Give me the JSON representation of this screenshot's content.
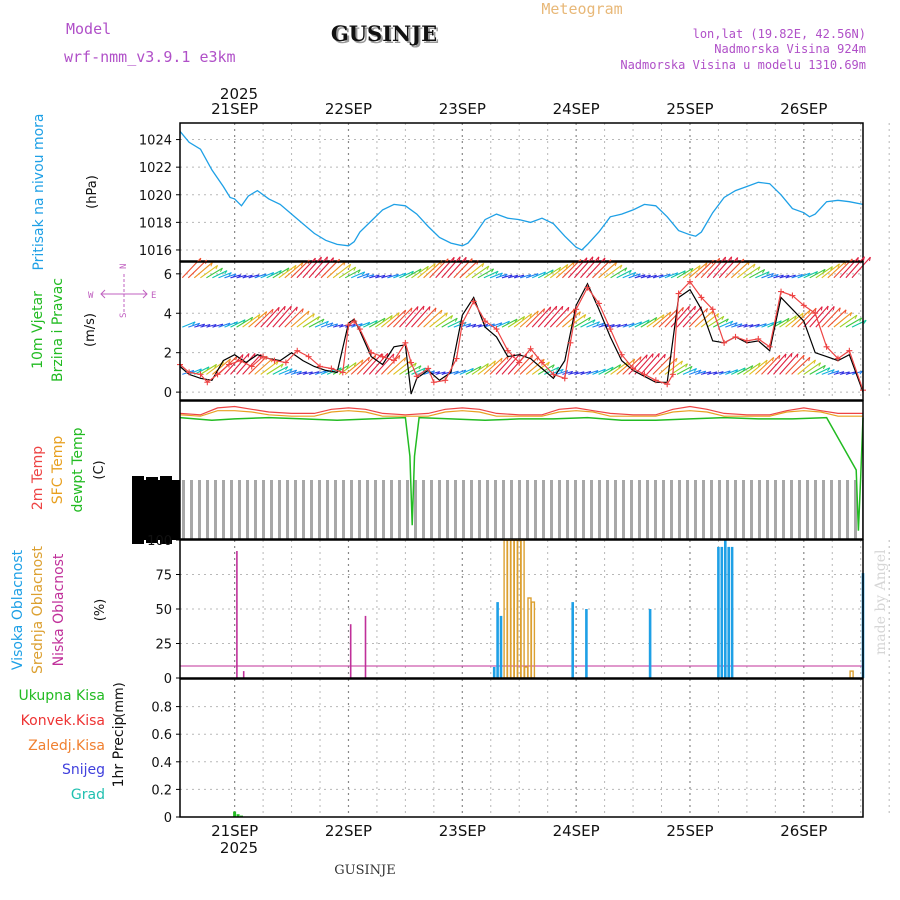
{
  "header": {
    "model_label": "Model",
    "model_name": "wrf-nmm_v3.9.1 e3km",
    "title": "GUSINJE",
    "meteogram": "Meteogram",
    "lonlat": "lon,lat (19.82E, 42.56N)",
    "elevation": "Nadmorska Visina 924m",
    "model_elevation": "Nadmorska Visina u modelu 1310.69m",
    "year_top": "2025",
    "year_bottom": "2025",
    "footer_station": "GUSINJE",
    "made_by": "made by Angel"
  },
  "colors": {
    "pressure": "#1ea0e6",
    "wind_label": "#22bb22",
    "temp_2m": "#ee4444",
    "temp_sfc": "#e8a020",
    "dewpoint": "#22bb22",
    "cloud_high": "#1ea0e6",
    "cloud_mid": "#dca030",
    "cloud_low": "#c0309a",
    "rain_total": "#22bb22",
    "rain_conv": "#ee3333",
    "rain_frz": "#f08030",
    "snow": "#4040dd",
    "graupel": "#20c0b0",
    "compass": "#c060c0",
    "wind_speed": "#ee4444",
    "wind_gust": "#000000"
  },
  "chart_data": [
    {
      "type": "line",
      "name": "pressure",
      "ylabel": "Pritisak na nivou mora",
      "unit": "(hPa)",
      "ylim": [
        1015.2,
        1025.2
      ],
      "yticks": [
        "1016",
        "1018",
        "1020",
        "1022",
        "1024"
      ],
      "xticks": [
        "21SEP",
        "22SEP",
        "23SEP",
        "24SEP",
        "25SEP",
        "26SEP"
      ],
      "x_start_day": 20.52,
      "x_end_day": 26.52,
      "series": [
        {
          "name": "MSLP",
          "color": "#1ea0e6",
          "x": [
            20.52,
            20.6,
            20.7,
            20.8,
            20.9,
            20.96,
            21.0,
            21.06,
            21.12,
            21.2,
            21.3,
            21.4,
            21.5,
            21.6,
            21.7,
            21.8,
            21.9,
            22.0,
            22.05,
            22.1,
            22.2,
            22.3,
            22.4,
            22.5,
            22.6,
            22.7,
            22.8,
            22.9,
            23.0,
            23.05,
            23.1,
            23.2,
            23.3,
            23.4,
            23.5,
            23.6,
            23.7,
            23.8,
            23.9,
            24.0,
            24.05,
            24.1,
            24.2,
            24.3,
            24.4,
            24.5,
            24.6,
            24.7,
            24.8,
            24.9,
            25.0,
            25.05,
            25.1,
            25.2,
            25.3,
            25.4,
            25.5,
            25.6,
            25.7,
            25.8,
            25.9,
            26.0,
            26.05,
            26.1,
            26.2,
            26.3,
            26.4,
            26.52
          ],
          "values": [
            1024.6,
            1023.8,
            1023.3,
            1021.8,
            1020.6,
            1019.8,
            1019.7,
            1019.2,
            1019.9,
            1020.3,
            1019.7,
            1019.3,
            1018.6,
            1017.9,
            1017.2,
            1016.7,
            1016.4,
            1016.3,
            1016.6,
            1017.3,
            1018.1,
            1018.9,
            1019.3,
            1019.2,
            1018.6,
            1017.7,
            1016.9,
            1016.5,
            1016.3,
            1016.5,
            1017.0,
            1018.2,
            1018.6,
            1018.3,
            1018.2,
            1018.0,
            1018.3,
            1017.9,
            1017.0,
            1016.2,
            1016.0,
            1016.4,
            1017.3,
            1018.4,
            1018.6,
            1018.9,
            1019.3,
            1019.2,
            1018.4,
            1017.4,
            1017.1,
            1017.0,
            1017.3,
            1018.7,
            1019.8,
            1020.3,
            1020.6,
            1020.9,
            1020.8,
            1020.0,
            1019.0,
            1018.7,
            1018.4,
            1018.6,
            1019.5,
            1019.6,
            1019.5,
            1019.3
          ]
        }
      ]
    },
    {
      "type": "line",
      "name": "wind",
      "ylabel_1": "10m Vjetar",
      "ylabel_2": "Brzina i Pravac",
      "unit": "(m/s)",
      "ylim": [
        -0.4,
        6.6
      ],
      "yticks": [
        "0",
        "2",
        "4",
        "6"
      ],
      "compass": {
        "n": "N",
        "e": "E",
        "s": "S",
        "w": "W"
      },
      "series": [
        {
          "name": "speed",
          "color": "#ee4444",
          "x": [
            20.52,
            20.6,
            20.7,
            20.76,
            20.85,
            20.95,
            21.05,
            21.15,
            21.25,
            21.35,
            21.45,
            21.55,
            21.65,
            21.75,
            21.85,
            21.95,
            22.0,
            22.05,
            22.1,
            22.2,
            22.3,
            22.4,
            22.5,
            22.55,
            22.6,
            22.7,
            22.75,
            22.85,
            22.95,
            23.0,
            23.1,
            23.2,
            23.3,
            23.4,
            23.5,
            23.6,
            23.7,
            23.8,
            23.9,
            23.95,
            24.0,
            24.1,
            24.2,
            24.3,
            24.4,
            24.5,
            24.6,
            24.7,
            24.8,
            24.85,
            24.9,
            25.0,
            25.1,
            25.2,
            25.3,
            25.4,
            25.5,
            25.6,
            25.7,
            25.8,
            25.9,
            26.0,
            26.1,
            26.2,
            26.3,
            26.4,
            26.52
          ],
          "values": [
            1.4,
            1.0,
            0.9,
            0.5,
            0.9,
            1.4,
            1.6,
            1.3,
            1.8,
            1.6,
            1.5,
            2.1,
            1.8,
            1.3,
            1.2,
            1.0,
            3.4,
            3.6,
            3.2,
            2.0,
            1.8,
            1.6,
            2.5,
            1.5,
            0.8,
            1.2,
            0.5,
            0.6,
            1.7,
            3.5,
            4.6,
            3.6,
            3.2,
            2.1,
            1.5,
            2.2,
            1.5,
            0.9,
            0.7,
            2.5,
            4.2,
            5.3,
            4.5,
            3.2,
            1.9,
            1.2,
            0.9,
            0.6,
            0.4,
            0.9,
            5.0,
            5.6,
            4.8,
            4.2,
            2.5,
            2.8,
            2.6,
            2.7,
            2.3,
            5.1,
            4.9,
            4.4,
            4.0,
            2.3,
            1.7,
            2.1,
            0.1
          ]
        },
        {
          "name": "gust",
          "color": "#000000",
          "x": [
            20.52,
            20.6,
            20.7,
            20.8,
            20.9,
            21.0,
            21.1,
            21.2,
            21.3,
            21.4,
            21.5,
            21.6,
            21.7,
            21.8,
            21.9,
            22.0,
            22.05,
            22.1,
            22.2,
            22.3,
            22.4,
            22.5,
            22.55,
            22.6,
            22.7,
            22.8,
            22.9,
            23.0,
            23.1,
            23.2,
            23.3,
            23.4,
            23.5,
            23.6,
            23.7,
            23.8,
            23.9,
            24.0,
            24.1,
            24.2,
            24.3,
            24.4,
            24.5,
            24.6,
            24.7,
            24.8,
            24.9,
            25.0,
            25.1,
            25.2,
            25.3,
            25.4,
            25.5,
            25.6,
            25.7,
            25.8,
            25.9,
            26.0,
            26.1,
            26.2,
            26.3,
            26.4,
            26.52
          ],
          "values": [
            1.3,
            0.9,
            0.7,
            0.6,
            1.6,
            1.9,
            1.5,
            1.9,
            1.7,
            1.6,
            2.0,
            1.6,
            1.3,
            1.1,
            1.0,
            3.5,
            3.7,
            3.1,
            1.8,
            1.4,
            2.3,
            2.4,
            -0.1,
            0.7,
            1.1,
            0.6,
            1.0,
            3.9,
            4.8,
            3.3,
            2.8,
            1.8,
            1.9,
            1.7,
            1.2,
            0.7,
            1.6,
            4.4,
            5.5,
            4.2,
            2.8,
            1.6,
            1.1,
            0.8,
            0.5,
            0.5,
            4.8,
            5.2,
            4.2,
            2.6,
            2.5,
            2.8,
            2.5,
            2.6,
            2.1,
            4.8,
            4.2,
            3.6,
            2.0,
            1.8,
            1.6,
            1.9,
            0.0
          ]
        }
      ],
      "barb_rows": [
        {
          "level": 5.8
        },
        {
          "level": 3.3
        },
        {
          "level": 0.9
        }
      ]
    },
    {
      "type": "line",
      "name": "temperature",
      "ylabel_1": "2m Temp",
      "ylabel_2": "SFC Temp",
      "ylabel_3": "dewpt Temp",
      "unit": "(C)",
      "ylim": [
        0,
        10
      ],
      "series": [
        {
          "name": "2m",
          "color": "#ee4444",
          "x": [
            20.52,
            20.7,
            20.85,
            21.0,
            21.15,
            21.3,
            21.5,
            21.7,
            21.85,
            22.0,
            22.15,
            22.3,
            22.5,
            22.7,
            22.85,
            23.0,
            23.15,
            23.3,
            23.5,
            23.7,
            23.85,
            24.0,
            24.15,
            24.3,
            24.5,
            24.7,
            24.85,
            25.0,
            25.15,
            25.3,
            25.5,
            25.7,
            25.85,
            26.0,
            26.15,
            26.3,
            26.52
          ],
          "values": [
            9.1,
            9.0,
            9.5,
            9.6,
            9.4,
            9.2,
            9.1,
            9.1,
            9.4,
            9.5,
            9.4,
            9.1,
            9.0,
            9.1,
            9.4,
            9.5,
            9.4,
            9.1,
            9.0,
            9.0,
            9.4,
            9.5,
            9.3,
            9.1,
            9.0,
            9.0,
            9.4,
            9.6,
            9.4,
            9.1,
            9.0,
            9.0,
            9.3,
            9.5,
            9.3,
            9.1,
            9.1
          ]
        },
        {
          "name": "sfc",
          "color": "#e8a020",
          "x": [
            20.52,
            20.7,
            20.85,
            21.0,
            21.15,
            21.3,
            21.5,
            21.7,
            21.85,
            22.0,
            22.15,
            22.3,
            22.5,
            22.7,
            22.85,
            23.0,
            23.15,
            23.3,
            23.5,
            23.7,
            23.85,
            24.0,
            24.15,
            24.3,
            24.5,
            24.7,
            24.85,
            25.0,
            25.15,
            25.3,
            25.5,
            25.7,
            25.85,
            26.0,
            26.15,
            26.3,
            26.52
          ],
          "values": [
            9.0,
            8.9,
            9.3,
            9.3,
            9.2,
            9.0,
            8.9,
            8.9,
            9.2,
            9.3,
            9.2,
            8.9,
            8.9,
            8.9,
            9.2,
            9.3,
            9.2,
            8.9,
            8.9,
            8.9,
            9.2,
            9.3,
            9.2,
            8.9,
            8.9,
            8.9,
            9.2,
            9.3,
            9.2,
            8.9,
            8.9,
            8.9,
            9.2,
            9.3,
            9.2,
            8.9,
            8.9
          ]
        },
        {
          "name": "dewpt",
          "color": "#22bb22",
          "x": [
            20.52,
            20.8,
            21.0,
            21.3,
            21.6,
            21.9,
            22.2,
            22.5,
            22.54,
            22.56,
            22.58,
            22.62,
            22.9,
            23.2,
            23.5,
            23.8,
            24.1,
            24.4,
            24.7,
            25.0,
            25.3,
            25.6,
            25.9,
            26.2,
            26.46,
            26.48,
            26.5,
            26.52
          ],
          "values": [
            8.8,
            8.6,
            8.7,
            8.8,
            8.7,
            8.6,
            8.7,
            8.8,
            6.0,
            1.0,
            6.0,
            8.8,
            8.7,
            8.6,
            8.7,
            8.7,
            8.8,
            8.6,
            8.6,
            8.7,
            8.8,
            8.7,
            8.7,
            8.8,
            5.0,
            0.6,
            4.5,
            8.8
          ]
        }
      ]
    },
    {
      "type": "bar",
      "name": "clouds",
      "ylabel_1": "Visoka Oblacnost",
      "ylabel_2": "Srednja Oblacnost",
      "ylabel_3": "Niska Oblacnost",
      "unit": "(%)",
      "ylim": [
        0,
        100
      ],
      "yticks": [
        "0",
        "25",
        "50",
        "75",
        "100"
      ],
      "series": [
        {
          "name": "low",
          "color": "#c0309a",
          "x": [
            21.02,
            21.08,
            22.02,
            22.15
          ],
          "values": [
            92,
            5,
            39,
            45
          ]
        },
        {
          "name": "mid",
          "color": "#dca030",
          "x": [
            23.38,
            23.41,
            23.44,
            23.47,
            23.5,
            23.53,
            23.56,
            23.59,
            23.62,
            26.42
          ],
          "values": [
            100,
            100,
            100,
            100,
            100,
            100,
            8,
            58,
            55,
            5
          ]
        },
        {
          "name": "high",
          "color": "#1ea0e6",
          "x": [
            23.28,
            23.31,
            23.34,
            23.97,
            24.09,
            24.65,
            25.25,
            25.28,
            25.31,
            25.34,
            25.37,
            26.52
          ],
          "values": [
            8,
            55,
            45,
            55,
            50,
            50,
            95,
            95,
            100,
            95,
            95,
            76
          ]
        }
      ]
    },
    {
      "type": "bar",
      "name": "precipitation",
      "labels": {
        "total": "Ukupna Kisa",
        "conv": "Konvek.Kisa",
        "frz": "Zaledj.Kisa",
        "snow": "Snijeg",
        "grad": "Grad"
      },
      "ylabel": "1hr Precip",
      "unit": "(mm)",
      "ylim": [
        0,
        1.0
      ],
      "yticks": [
        "0",
        "0.2",
        "0.4",
        "0.6",
        "0.8"
      ],
      "series": [
        {
          "name": "total",
          "color": "#22bb22",
          "x": [
            21.0,
            21.03,
            21.06
          ],
          "values": [
            0.04,
            0.02,
            0.01
          ]
        }
      ]
    }
  ]
}
